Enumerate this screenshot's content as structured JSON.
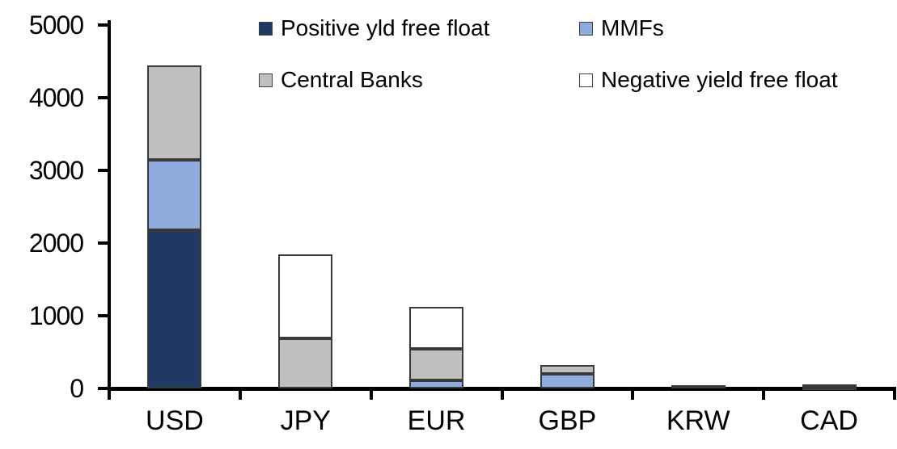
{
  "chart_data": {
    "type": "bar",
    "stacked": true,
    "title": "",
    "xlabel": "",
    "ylabel": "",
    "categories": [
      "USD",
      "JPY",
      "EUR",
      "GBP",
      "KRW",
      "CAD"
    ],
    "series": [
      {
        "name": "Positive yld free float",
        "color": "#1f3864",
        "values": [
          2175,
          0,
          0,
          0,
          40,
          25
        ]
      },
      {
        "name": "MMFs",
        "color": "#8faadc",
        "values": [
          975,
          0,
          110,
          200,
          0,
          0
        ]
      },
      {
        "name": "Central Banks",
        "color": "#bfbfbf",
        "values": [
          1300,
          690,
          430,
          125,
          0,
          35
        ]
      },
      {
        "name": "Negative yield free float",
        "color": "#ffffff",
        "values": [
          0,
          1160,
          580,
          0,
          0,
          0
        ]
      }
    ],
    "ylim": [
      0,
      5000
    ],
    "yticks": [
      "0",
      "1000",
      "2000",
      "3000",
      "4000",
      "5000"
    ],
    "grid": false,
    "legend_position": "top",
    "legend_rows": [
      [
        "Positive yld free float",
        "MMFs"
      ],
      [
        "Central Banks",
        "Negative yield free float"
      ]
    ]
  },
  "colors": {
    "axis": "#000000",
    "segment_border": "#3a3a3a",
    "text": "#000000",
    "background": "#ffffff"
  }
}
